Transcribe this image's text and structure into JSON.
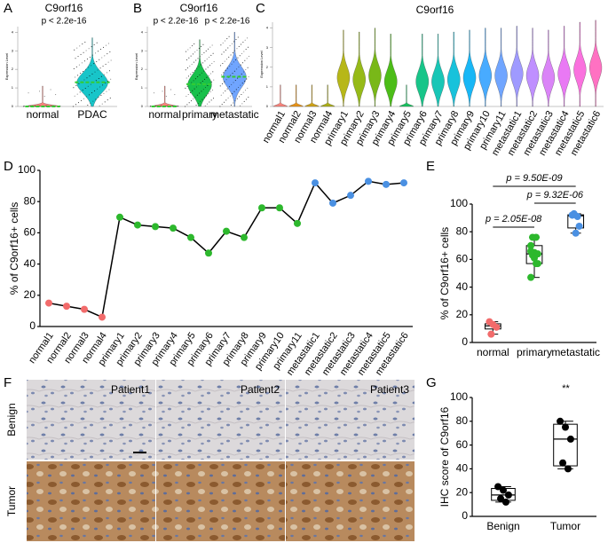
{
  "panel_labels": [
    "A",
    "B",
    "C",
    "D",
    "E",
    "F",
    "G"
  ],
  "chart_data": [
    {
      "type": "violin",
      "title": "C9orf16",
      "annotations": [
        "p < 2.2e-16"
      ],
      "y_label": "Expression Level",
      "categories": [
        "normal",
        "PDAC"
      ],
      "values": [
        0,
        1.3
      ],
      "colors": [
        "#f8766d",
        "#00bfc4"
      ],
      "ylim": [
        0,
        4.3
      ],
      "yticks": [
        0,
        1,
        2,
        3,
        4
      ],
      "median_color": "#33cc33"
    },
    {
      "type": "violin",
      "title": "C9orf16",
      "annotations": [
        "p < 2.2e-16",
        "p < 2.2e-16"
      ],
      "y_label": "Expression Level",
      "categories": [
        "normal",
        "primary",
        "metastatic"
      ],
      "values": [
        0,
        1.2,
        1.6
      ],
      "colors": [
        "#f8766d",
        "#00ba38",
        "#619cff"
      ],
      "ylim": [
        0,
        4.3
      ],
      "yticks": [
        0,
        1,
        2,
        3,
        4
      ],
      "median_color": "#33cc33"
    },
    {
      "type": "violin",
      "title": "C9orf16",
      "y_label": "Expression Level",
      "categories": [
        "normal1",
        "normal2",
        "normal3",
        "normal4",
        "primary1",
        "primary2",
        "primary3",
        "primary4",
        "primary5",
        "primary6",
        "primary7",
        "primary8",
        "primary9",
        "primary10",
        "primary11",
        "metastatic1",
        "metastatic2",
        "metastatic3",
        "metastatic4",
        "metastatic5",
        "metastatic6"
      ],
      "values": [
        0,
        0,
        0,
        0,
        1.5,
        1.4,
        1.6,
        1.3,
        0,
        1.3,
        1.3,
        1.4,
        1.5,
        1.6,
        1.6,
        1.7,
        1.6,
        1.5,
        1.7,
        1.9,
        2.0
      ],
      "colors": [
        "#f8766d",
        "#e58700",
        "#c99800",
        "#a3a500",
        "#b0b000",
        "#8bb300",
        "#6bb100",
        "#39b600",
        "#00bb4e",
        "#00bf7d",
        "#00c0af",
        "#00bcd8",
        "#00b0f6",
        "#35a2ff",
        "#619cff",
        "#9590ff",
        "#b983ff",
        "#d777f7",
        "#e76bf3",
        "#fa62db",
        "#ff62bc"
      ],
      "ylim": [
        0,
        4.3
      ],
      "yticks": [
        0,
        1,
        2,
        3,
        4
      ]
    },
    {
      "type": "line",
      "y_label": "% of C9orf16+ cells",
      "categories": [
        "normal1",
        "normal2",
        "normal3",
        "normal4",
        "primary1",
        "primary2",
        "primary3",
        "primary4",
        "primary5",
        "primary6",
        "primary7",
        "primary8",
        "primary9",
        "primary10",
        "primary11",
        "metastatic1",
        "metastatic2",
        "metastatic3",
        "metastatic4",
        "metastatic5",
        "metastatic6"
      ],
      "values": [
        15,
        13,
        11,
        6,
        70,
        65,
        64,
        63,
        57,
        47,
        61,
        57,
        76,
        76,
        66,
        92,
        79,
        84,
        93,
        91,
        92
      ],
      "color": "#000000",
      "point_colors": [
        "#f26b6b",
        "#f26b6b",
        "#f26b6b",
        "#f26b6b",
        "#2db82d",
        "#2db82d",
        "#2db82d",
        "#2db82d",
        "#2db82d",
        "#2db82d",
        "#2db82d",
        "#2db82d",
        "#2db82d",
        "#2db82d",
        "#2db82d",
        "#4a90e2",
        "#4a90e2",
        "#4a90e2",
        "#4a90e2",
        "#4a90e2",
        "#4a90e2"
      ],
      "ylim": [
        0,
        100
      ],
      "yticks": [
        0,
        20,
        40,
        60,
        80,
        100
      ]
    },
    {
      "type": "box",
      "y_label": "% of C9orf16+ cells",
      "categories": [
        "normal",
        "primary",
        "metastatic"
      ],
      "points": [
        [
          15,
          13,
          11,
          6
        ],
        [
          70,
          65,
          64,
          63,
          57,
          47,
          61,
          57,
          76,
          76,
          66
        ],
        [
          92,
          79,
          84,
          93,
          91,
          92
        ]
      ],
      "boxes": [
        {
          "min": 6,
          "q1": 9.75,
          "median": 12,
          "q3": 13.5,
          "max": 15
        },
        {
          "min": 47,
          "q1": 57,
          "median": 64,
          "q3": 70,
          "max": 76
        },
        {
          "min": 79,
          "q1": 82.75,
          "median": 91.5,
          "q3": 92.25,
          "max": 93
        }
      ],
      "point_colors": [
        "#f26b6b",
        "#2db82d",
        "#4a90e2"
      ],
      "annotations": [
        "p = 2.05E-08",
        "p = 9.32E-06",
        "p = 9.50E-09"
      ],
      "ylim": [
        0,
        100
      ],
      "yticks": [
        0,
        20,
        40,
        60,
        80,
        100
      ]
    },
    {
      "type": "box",
      "y_label": "IHC score of C9orf16",
      "categories": [
        "Benign",
        "Tumor"
      ],
      "points": [
        [
          25,
          22,
          18,
          15,
          12
        ],
        [
          80,
          75,
          65,
          45,
          40
        ]
      ],
      "boxes": [
        {
          "min": 12,
          "q1": 13.5,
          "median": 18,
          "q3": 23.5,
          "max": 25
        },
        {
          "min": 40,
          "q1": 42.5,
          "median": 65,
          "q3": 77.5,
          "max": 80
        }
      ],
      "point_colors": [
        "#000000",
        "#000000"
      ],
      "annotations": [
        "**"
      ],
      "ylim": [
        0,
        100
      ],
      "yticks": [
        0,
        20,
        40,
        60,
        80,
        100
      ]
    }
  ],
  "ihc": {
    "columns": [
      "Patient1",
      "Patient2",
      "Patient3"
    ],
    "rows": [
      "Benign",
      "Tumor"
    ]
  }
}
